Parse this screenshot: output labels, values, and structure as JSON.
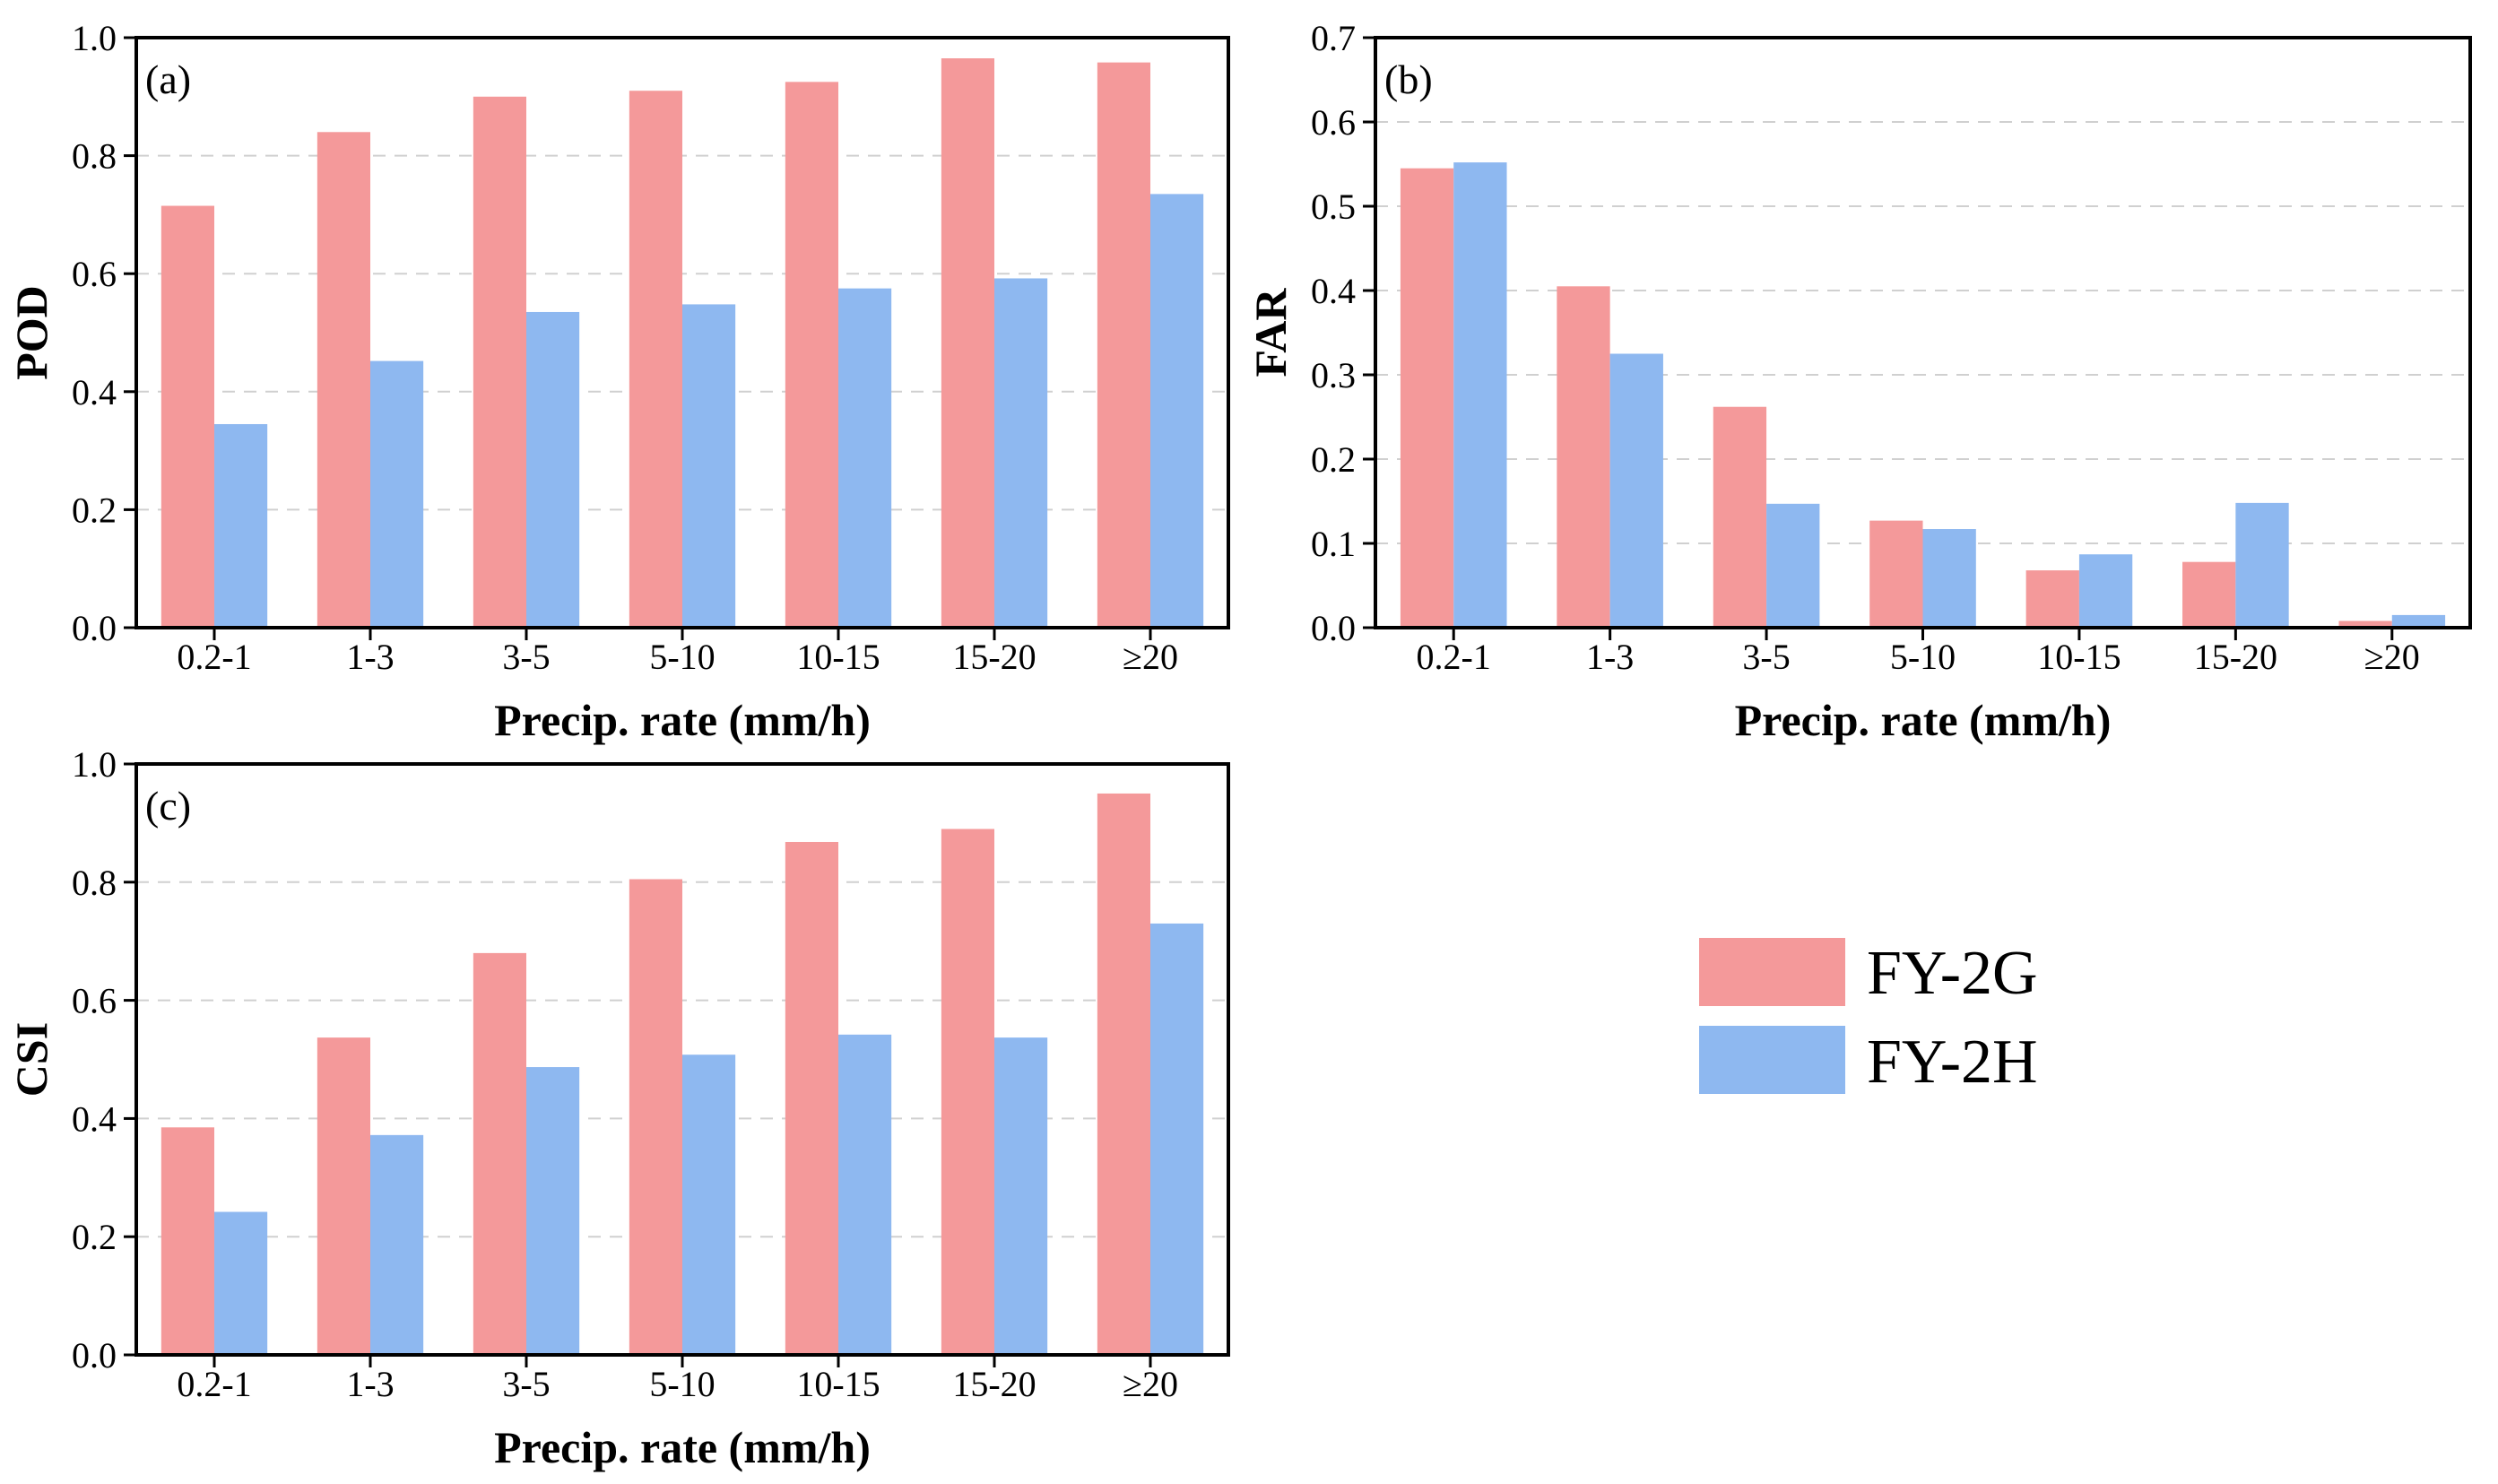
{
  "colors": {
    "series_a": "#f4999a",
    "series_b": "#8eb8f0",
    "grid": "#d0d0d0",
    "axis": "#000000"
  },
  "legend": {
    "items": [
      {
        "label": "FY-2G",
        "color": "#f4999a"
      },
      {
        "label": "FY-2H",
        "color": "#8eb8f0"
      }
    ]
  },
  "chart_data": [
    {
      "type": "bar",
      "panel_label": "(a)",
      "ylabel": "POD",
      "xlabel": "Precip. rate (mm/h)",
      "categories": [
        "0.2-1",
        "1-3",
        "3-5",
        "5-10",
        "10-15",
        "15-20",
        "≥20"
      ],
      "series": [
        {
          "name": "FY-2G",
          "values": [
            0.715,
            0.84,
            0.9,
            0.91,
            0.925,
            0.965,
            0.958
          ]
        },
        {
          "name": "FY-2H",
          "values": [
            0.345,
            0.452,
            0.535,
            0.548,
            0.575,
            0.592,
            0.735
          ]
        }
      ],
      "ylim": [
        0,
        1.0
      ],
      "yticks": [
        "0.0",
        "0.2",
        "0.4",
        "0.6",
        "0.8",
        "1.0"
      ],
      "grid": true
    },
    {
      "type": "bar",
      "panel_label": "(b)",
      "ylabel": "FAR",
      "xlabel": "Precip. rate (mm/h)",
      "categories": [
        "0.2-1",
        "1-3",
        "3-5",
        "5-10",
        "10-15",
        "15-20",
        "≥20"
      ],
      "series": [
        {
          "name": "FY-2G",
          "values": [
            0.545,
            0.405,
            0.262,
            0.127,
            0.068,
            0.078,
            0.008
          ]
        },
        {
          "name": "FY-2H",
          "values": [
            0.552,
            0.325,
            0.147,
            0.117,
            0.087,
            0.148,
            0.015
          ]
        }
      ],
      "ylim": [
        0,
        0.7
      ],
      "yticks": [
        "0.0",
        "0.1",
        "0.2",
        "0.3",
        "0.4",
        "0.5",
        "0.6",
        "0.7"
      ],
      "grid": true
    },
    {
      "type": "bar",
      "panel_label": "(c)",
      "ylabel": "CSI",
      "xlabel": "Precip. rate (mm/h)",
      "categories": [
        "0.2-1",
        "1-3",
        "3-5",
        "5-10",
        "10-15",
        "15-20",
        "≥20"
      ],
      "series": [
        {
          "name": "FY-2G",
          "values": [
            0.385,
            0.537,
            0.68,
            0.805,
            0.868,
            0.89,
            0.95
          ]
        },
        {
          "name": "FY-2H",
          "values": [
            0.242,
            0.372,
            0.487,
            0.508,
            0.542,
            0.537,
            0.73
          ]
        }
      ],
      "ylim": [
        0,
        1.0
      ],
      "yticks": [
        "0.0",
        "0.2",
        "0.4",
        "0.6",
        "0.8",
        "1.0"
      ],
      "grid": true
    }
  ]
}
